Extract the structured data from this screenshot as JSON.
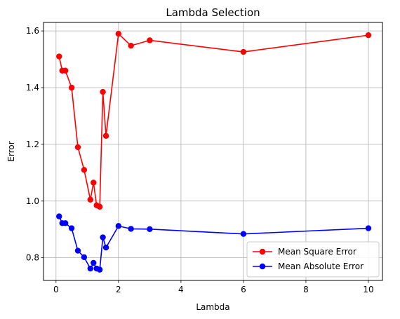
{
  "chart_data": {
    "type": "line",
    "title": "Lambda Selection",
    "xlabel": "Lambda",
    "ylabel": "Error",
    "xlim": [
      -0.4,
      10.45
    ],
    "ylim": [
      0.72,
      1.63
    ],
    "xticks": [
      0,
      2,
      4,
      6,
      8,
      10
    ],
    "yticks": [
      0.8,
      1.0,
      1.2,
      1.4,
      1.6
    ],
    "xtick_labels": [
      "0",
      "2",
      "4",
      "6",
      "8",
      "10"
    ],
    "ytick_labels": [
      "0.8",
      "1.0",
      "1.2",
      "1.4",
      "1.6"
    ],
    "grid": true,
    "legend_position": "lower-right",
    "x": [
      0.1,
      0.2,
      0.3,
      0.5,
      0.7,
      0.9,
      1.1,
      1.2,
      1.3,
      1.4,
      1.5,
      1.6,
      2.0,
      2.4,
      3.0,
      6.0,
      10.0
    ],
    "series": [
      {
        "name": "Mean Square Error",
        "color": "#ff0000",
        "values": [
          1.51,
          1.46,
          1.46,
          1.4,
          1.19,
          1.11,
          1.005,
          1.065,
          0.985,
          0.98,
          1.385,
          1.23,
          1.59,
          1.548,
          1.567,
          1.526,
          1.585
        ]
      },
      {
        "name": "Mean Absolute Error",
        "color": "#0000ff",
        "values": [
          0.946,
          0.922,
          0.922,
          0.904,
          0.825,
          0.802,
          0.762,
          0.782,
          0.762,
          0.758,
          0.872,
          0.836,
          0.912,
          0.902,
          0.901,
          0.884,
          0.904
        ]
      }
    ]
  }
}
